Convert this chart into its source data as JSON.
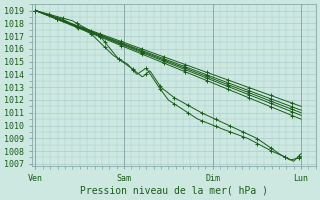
{
  "title": "Pression niveau de la mer( hPa )",
  "background_color": "#cce8e0",
  "grid_color": "#aacccc",
  "line_color": "#1a5c1a",
  "ylim": [
    1006.8,
    1019.5
  ],
  "yticks": [
    1007,
    1008,
    1009,
    1010,
    1011,
    1012,
    1013,
    1014,
    1015,
    1016,
    1017,
    1018,
    1019
  ],
  "xtick_labels": [
    "Ven",
    "Sam",
    "Dim",
    "Lun"
  ],
  "xtick_positions": [
    0,
    48,
    96,
    144
  ],
  "xlim": [
    -2,
    152
  ],
  "line_width": 0.7,
  "marker": "+",
  "marker_size": 2.5,
  "tick_fontsize": 6,
  "xlabel_fontsize": 7
}
